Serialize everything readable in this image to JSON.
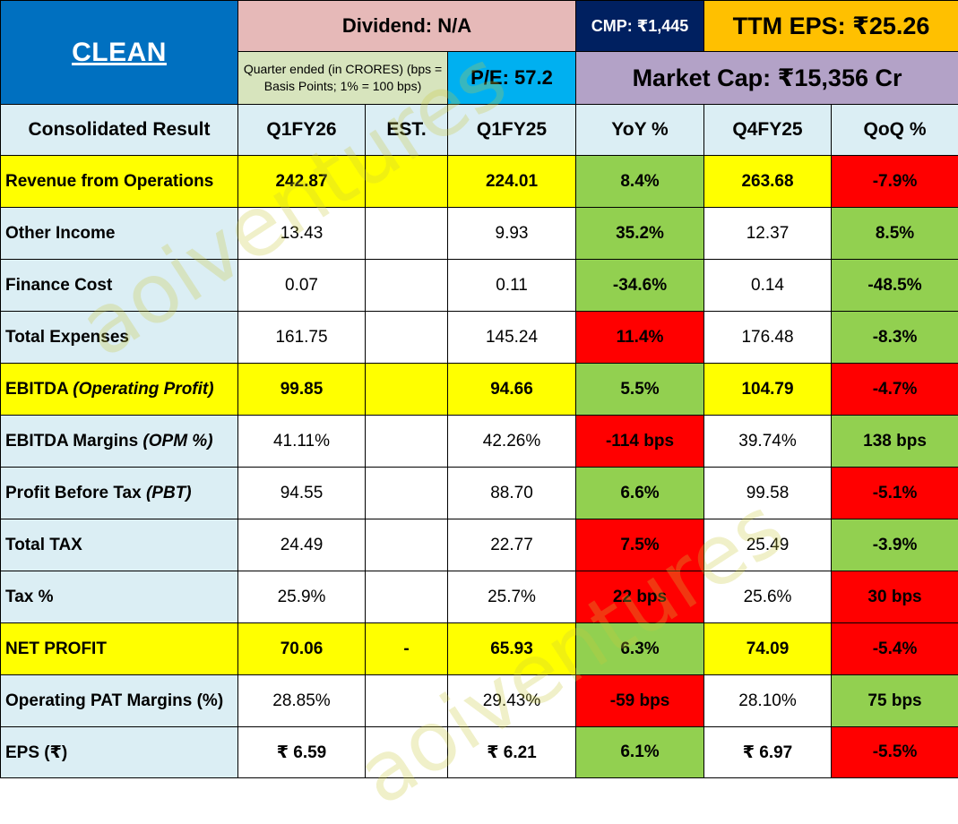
{
  "header": {
    "brand": "CLEAN",
    "dividend": "Dividend: N/A",
    "cmp": "CMP: ₹1,445",
    "ttm_eps": "TTM EPS: ₹25.26",
    "note": "Quarter ended (in CRORES) (bps = Basis Points; 1% = 100 bps)",
    "pe": "P/E: 57.2",
    "market_cap": "Market Cap: ₹15,356 Cr"
  },
  "columns": [
    "Consolidated Result",
    "Q1FY26",
    "EST.",
    "Q1FY25",
    "YoY %",
    "Q4FY25",
    "QoQ %"
  ],
  "rows": [
    {
      "label": "Revenue from Operations",
      "label_italic": "",
      "q1fy26": "242.87",
      "est": "",
      "q1fy25": "224.01",
      "yoy": "8.4%",
      "q4fy25": "263.68",
      "qoq": "-7.9%"
    },
    {
      "label": "Other Income",
      "label_italic": "",
      "q1fy26": "13.43",
      "est": "",
      "q1fy25": "9.93",
      "yoy": "35.2%",
      "q4fy25": "12.37",
      "qoq": "8.5%"
    },
    {
      "label": "Finance Cost",
      "label_italic": "",
      "q1fy26": "0.07",
      "est": "",
      "q1fy25": "0.11",
      "yoy": "-34.6%",
      "q4fy25": "0.14",
      "qoq": "-48.5%"
    },
    {
      "label": "Total Expenses",
      "label_italic": "",
      "q1fy26": "161.75",
      "est": "",
      "q1fy25": "145.24",
      "yoy": "11.4%",
      "q4fy25": "176.48",
      "qoq": "-8.3%"
    },
    {
      "label": "EBITDA ",
      "label_italic": "(Operating Profit)",
      "q1fy26": "99.85",
      "est": "",
      "q1fy25": "94.66",
      "yoy": "5.5%",
      "q4fy25": "104.79",
      "qoq": "-4.7%"
    },
    {
      "label": "EBITDA Margins ",
      "label_italic": "(OPM %)",
      "q1fy26": "41.11%",
      "est": "",
      "q1fy25": "42.26%",
      "yoy": "-114 bps",
      "q4fy25": "39.74%",
      "qoq": "138 bps"
    },
    {
      "label": "Profit Before Tax ",
      "label_italic": "(PBT)",
      "q1fy26": "94.55",
      "est": "",
      "q1fy25": "88.70",
      "yoy": "6.6%",
      "q4fy25": "99.58",
      "qoq": "-5.1%"
    },
    {
      "label": "Total TAX",
      "label_italic": "",
      "q1fy26": "24.49",
      "est": "",
      "q1fy25": "22.77",
      "yoy": "7.5%",
      "q4fy25": "25.49",
      "qoq": "-3.9%"
    },
    {
      "label": "Tax %",
      "label_italic": "",
      "q1fy26": "25.9%",
      "est": "",
      "q1fy25": "25.7%",
      "yoy": "22 bps",
      "q4fy25": "25.6%",
      "qoq": "30 bps"
    },
    {
      "label": "NET PROFIT",
      "label_italic": "",
      "q1fy26": "70.06",
      "est": "-",
      "q1fy25": "65.93",
      "yoy": "6.3%",
      "q4fy25": "74.09",
      "qoq": "-5.4%"
    },
    {
      "label": "Operating PAT Margins (%)",
      "label_italic": "",
      "q1fy26": "28.85%",
      "est": "",
      "q1fy25": "29.43%",
      "yoy": "-59 bps",
      "q4fy25": "28.10%",
      "qoq": "75 bps"
    },
    {
      "label": "EPS (₹)",
      "label_italic": "",
      "q1fy26": "₹ 6.59",
      "est": "",
      "q1fy25": "₹ 6.21",
      "yoy": "6.1%",
      "q4fy25": "₹ 6.97",
      "qoq": "-5.5%"
    }
  ],
  "watermark": "aoiventures",
  "colors": {
    "label_bg": "#dbeef4",
    "highlight_yellow": "#ffff00",
    "positive_green": "#92d050",
    "negative_red": "#ff0000",
    "brand_blue": "#0070c0",
    "cmp_navy": "#002060",
    "eps_orange": "#ffc000",
    "mcap_lavender": "#b3a2c7",
    "dividend_pink": "#e6b9b8",
    "pe_cyan": "#00b0f0"
  }
}
